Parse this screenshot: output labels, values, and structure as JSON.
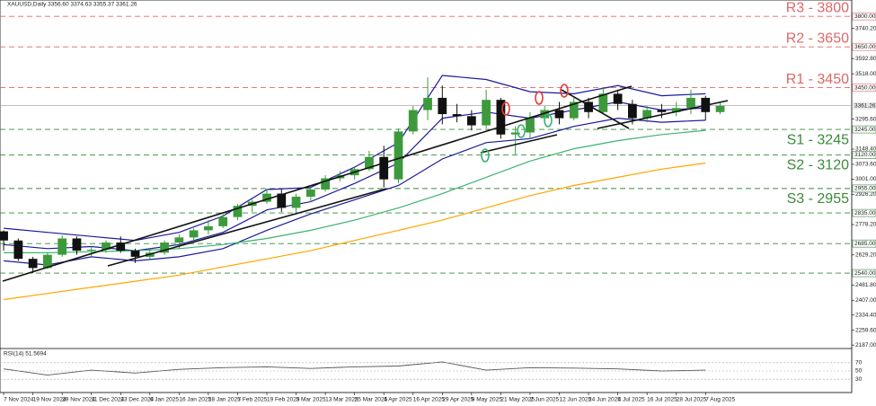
{
  "chart_data": {
    "type": "candlestick",
    "header": "XAUUSD,Daily  3356.60 3374.63 3355.37 3361.26",
    "xlim": [
      -1,
      232
    ],
    "ylim": [
      2170,
      3880
    ],
    "xticks": [
      {
        "value": 0,
        "label": "7 Nov 2024"
      },
      {
        "value": 8,
        "label": "19 Nov 2024"
      },
      {
        "value": 16,
        "label": "29 Nov 2024"
      },
      {
        "value": 24,
        "label": "11 Dec 2024"
      },
      {
        "value": 32,
        "label": "23 Dec 2024"
      },
      {
        "value": 40,
        "label": "6 Jan 2025"
      },
      {
        "value": 48,
        "label": "16 Jan 2025"
      },
      {
        "value": 56,
        "label": "28 Jan 2025"
      },
      {
        "value": 64,
        "label": "7 Feb 2025"
      },
      {
        "value": 72,
        "label": "19 Feb 2025"
      },
      {
        "value": 80,
        "label": "3 Mar 2025"
      },
      {
        "value": 88,
        "label": "13 Mar 2025"
      },
      {
        "value": 96,
        "label": "25 Mar 2025"
      },
      {
        "value": 104,
        "label": "4 Apr 2025"
      },
      {
        "value": 112,
        "label": "16 Apr 2025"
      },
      {
        "value": 120,
        "label": "29 Apr 2025"
      },
      {
        "value": 128,
        "label": "9 May 2025"
      },
      {
        "value": 136,
        "label": "21 May 2025"
      },
      {
        "value": 144,
        "label": "2 Jun 2025"
      },
      {
        "value": 152,
        "label": "12 Jun 2025"
      },
      {
        "value": 160,
        "label": "24 Jun 2025"
      },
      {
        "value": 168,
        "label": "4 Jul 2025"
      },
      {
        "value": 176,
        "label": "16 Jul 2025"
      },
      {
        "value": 184,
        "label": "28 Jul 2025"
      },
      {
        "value": 192,
        "label": "7 Aug 2025"
      }
    ],
    "yticks": [
      {
        "value": 3740.2,
        "label": "3740.20"
      },
      {
        "value": 3592.8,
        "label": "3592.80"
      },
      {
        "value": 3518,
        "label": "3518.00"
      },
      {
        "value": 3295.6,
        "label": "3295.60"
      },
      {
        "value": 3148.4,
        "label": "3148.40"
      },
      {
        "value": 3073.6,
        "label": "3073.60"
      },
      {
        "value": 3001,
        "label": "3001.00"
      },
      {
        "value": 2926.2,
        "label": "2926.20"
      },
      {
        "value": 2778.2,
        "label": "2778.20"
      },
      {
        "value": 2629.2,
        "label": "2629.20"
      },
      {
        "value": 2481.8,
        "label": "2481.80"
      },
      {
        "value": 2407,
        "label": "2407.00"
      },
      {
        "value": 2334.4,
        "label": "2334.40"
      },
      {
        "value": 2259.6,
        "label": "2259.60"
      },
      {
        "value": 2187,
        "label": "2187.00"
      }
    ],
    "levels": [
      {
        "tag": "R3 - 3800",
        "price": {
          "value": 3800,
          "label": "3800.00"
        },
        "color": "#e06666"
      },
      {
        "tag": "R2 - 3650",
        "price": {
          "value": 3650,
          "label": "3650.00"
        },
        "color": "#e06666"
      },
      {
        "tag": "R1 - 3450",
        "price": {
          "value": 3450,
          "label": "3450.00"
        },
        "color": "#e06666"
      },
      {
        "tag": "S1 - 3245",
        "price": {
          "value": 3245,
          "label": "3245.00"
        },
        "color": "#3a8a3a"
      },
      {
        "tag": "S2 - 3120",
        "price": {
          "value": 3120,
          "label": "3120.00"
        },
        "color": "#3a8a3a"
      },
      {
        "tag": "S3 - 2955",
        "price": {
          "value": 2955,
          "label": "2955.00"
        },
        "color": "#3a8a3a"
      },
      {
        "price": {
          "value": 2835,
          "label": "2835.00"
        },
        "color": "#3a8a3a"
      },
      {
        "price": {
          "value": 2685,
          "label": "2685.00"
        },
        "color": "#3a8a3a"
      },
      {
        "price": {
          "value": 2540,
          "label": "2540.00"
        },
        "color": "#3a8a3a"
      }
    ],
    "last": {
      "value": 3361.26,
      "label": "3361.26"
    },
    "candles": {
      "up_color": "#3c9a3c",
      "down_color": "#111111",
      "x": [
        0,
        4,
        8,
        12,
        16,
        20,
        24,
        28,
        32,
        36,
        40,
        44,
        48,
        52,
        56,
        60,
        64,
        68,
        72,
        76,
        80,
        84,
        88,
        92,
        96,
        100,
        104,
        108,
        112,
        116,
        120,
        124,
        128,
        132,
        136,
        140,
        144,
        148,
        152,
        156,
        160,
        164,
        168,
        172,
        176,
        180,
        184,
        188,
        192,
        196
      ],
      "open": [
        2745,
        2700,
        2610,
        2565,
        2630,
        2710,
        2650,
        2655,
        2690,
        2650,
        2620,
        2640,
        2690,
        2715,
        2750,
        2770,
        2815,
        2870,
        2890,
        2930,
        2860,
        2915,
        2950,
        3005,
        3020,
        3050,
        3110,
        3000,
        3235,
        3340,
        3400,
        3320,
        3310,
        3265,
        3390,
        3220,
        3230,
        3300,
        3340,
        3300,
        3380,
        3330,
        3420,
        3370,
        3300,
        3340,
        3330,
        3350,
        3400,
        3330
      ],
      "high": [
        2750,
        2710,
        2620,
        2640,
        2725,
        2720,
        2670,
        2700,
        2720,
        2660,
        2660,
        2700,
        2730,
        2760,
        2800,
        2830,
        2880,
        2900,
        2950,
        2955,
        2930,
        2960,
        3020,
        3040,
        3060,
        3140,
        3165,
        3250,
        3360,
        3500,
        3460,
        3370,
        3340,
        3440,
        3400,
        3260,
        3330,
        3360,
        3380,
        3400,
        3400,
        3450,
        3440,
        3390,
        3360,
        3370,
        3380,
        3440,
        3410,
        3375
      ],
      "low": [
        2650,
        2600,
        2540,
        2560,
        2620,
        2630,
        2620,
        2640,
        2640,
        2590,
        2610,
        2630,
        2660,
        2700,
        2730,
        2760,
        2800,
        2840,
        2880,
        2840,
        2830,
        2890,
        2940,
        2990,
        3000,
        3040,
        2960,
        2980,
        3220,
        3290,
        3270,
        3280,
        3240,
        3250,
        3200,
        3120,
        3200,
        3280,
        3270,
        3290,
        3300,
        3320,
        3340,
        3270,
        3280,
        3300,
        3310,
        3320,
        3290,
        3320
      ],
      "close": [
        2700,
        2610,
        2565,
        2630,
        2710,
        2650,
        2655,
        2690,
        2650,
        2620,
        2640,
        2690,
        2715,
        2750,
        2770,
        2815,
        2870,
        2890,
        2930,
        2860,
        2915,
        2950,
        3005,
        3020,
        3050,
        3110,
        3000,
        3235,
        3340,
        3400,
        3320,
        3310,
        3265,
        3390,
        3220,
        3230,
        3300,
        3340,
        3300,
        3380,
        3330,
        3420,
        3370,
        3300,
        3340,
        3330,
        3350,
        3400,
        3330,
        3361.26
      ]
    },
    "indicator_x": [
      0,
      12,
      24,
      36,
      48,
      60,
      72,
      84,
      96,
      108,
      120,
      132,
      144,
      156,
      168,
      180,
      192
    ],
    "indicators": [
      {
        "color": "#1a1a9a",
        "values": [
          2760,
          2740,
          2720,
          2700,
          2740,
          2820,
          2950,
          2960,
          3060,
          3180,
          3510,
          3490,
          3430,
          3420,
          3460,
          3410,
          3420
        ]
      },
      {
        "color": "#1a1a9a",
        "values": [
          2680,
          2660,
          2670,
          2650,
          2680,
          2740,
          2850,
          2890,
          2980,
          3080,
          3300,
          3330,
          3300,
          3340,
          3380,
          3340,
          3350
        ]
      },
      {
        "color": "#1a1a9a",
        "values": [
          2600,
          2580,
          2620,
          2600,
          2620,
          2660,
          2750,
          2830,
          2900,
          2970,
          3100,
          3180,
          3200,
          3260,
          3300,
          3280,
          3290
        ]
      },
      {
        "color": "#3cb371",
        "values": [
          2640,
          2640,
          2645,
          2650,
          2660,
          2680,
          2710,
          2750,
          2800,
          2860,
          2930,
          3010,
          3090,
          3150,
          3190,
          3220,
          3240
        ]
      },
      {
        "color": "#ffa500",
        "values": [
          2410,
          2440,
          2470,
          2500,
          2530,
          2570,
          2610,
          2650,
          2700,
          2750,
          2800,
          2860,
          2920,
          2970,
          3010,
          3050,
          3080
        ]
      }
    ],
    "rsi": {
      "label": "RSI(14) 51.5694",
      "color": "#555555",
      "ylim": [
        0,
        100
      ],
      "yticks": [
        70,
        50,
        30
      ],
      "values": [
        55,
        40,
        52,
        45,
        54,
        58,
        60,
        56,
        60,
        62,
        72,
        52,
        58,
        57,
        55,
        50,
        52
      ]
    }
  }
}
